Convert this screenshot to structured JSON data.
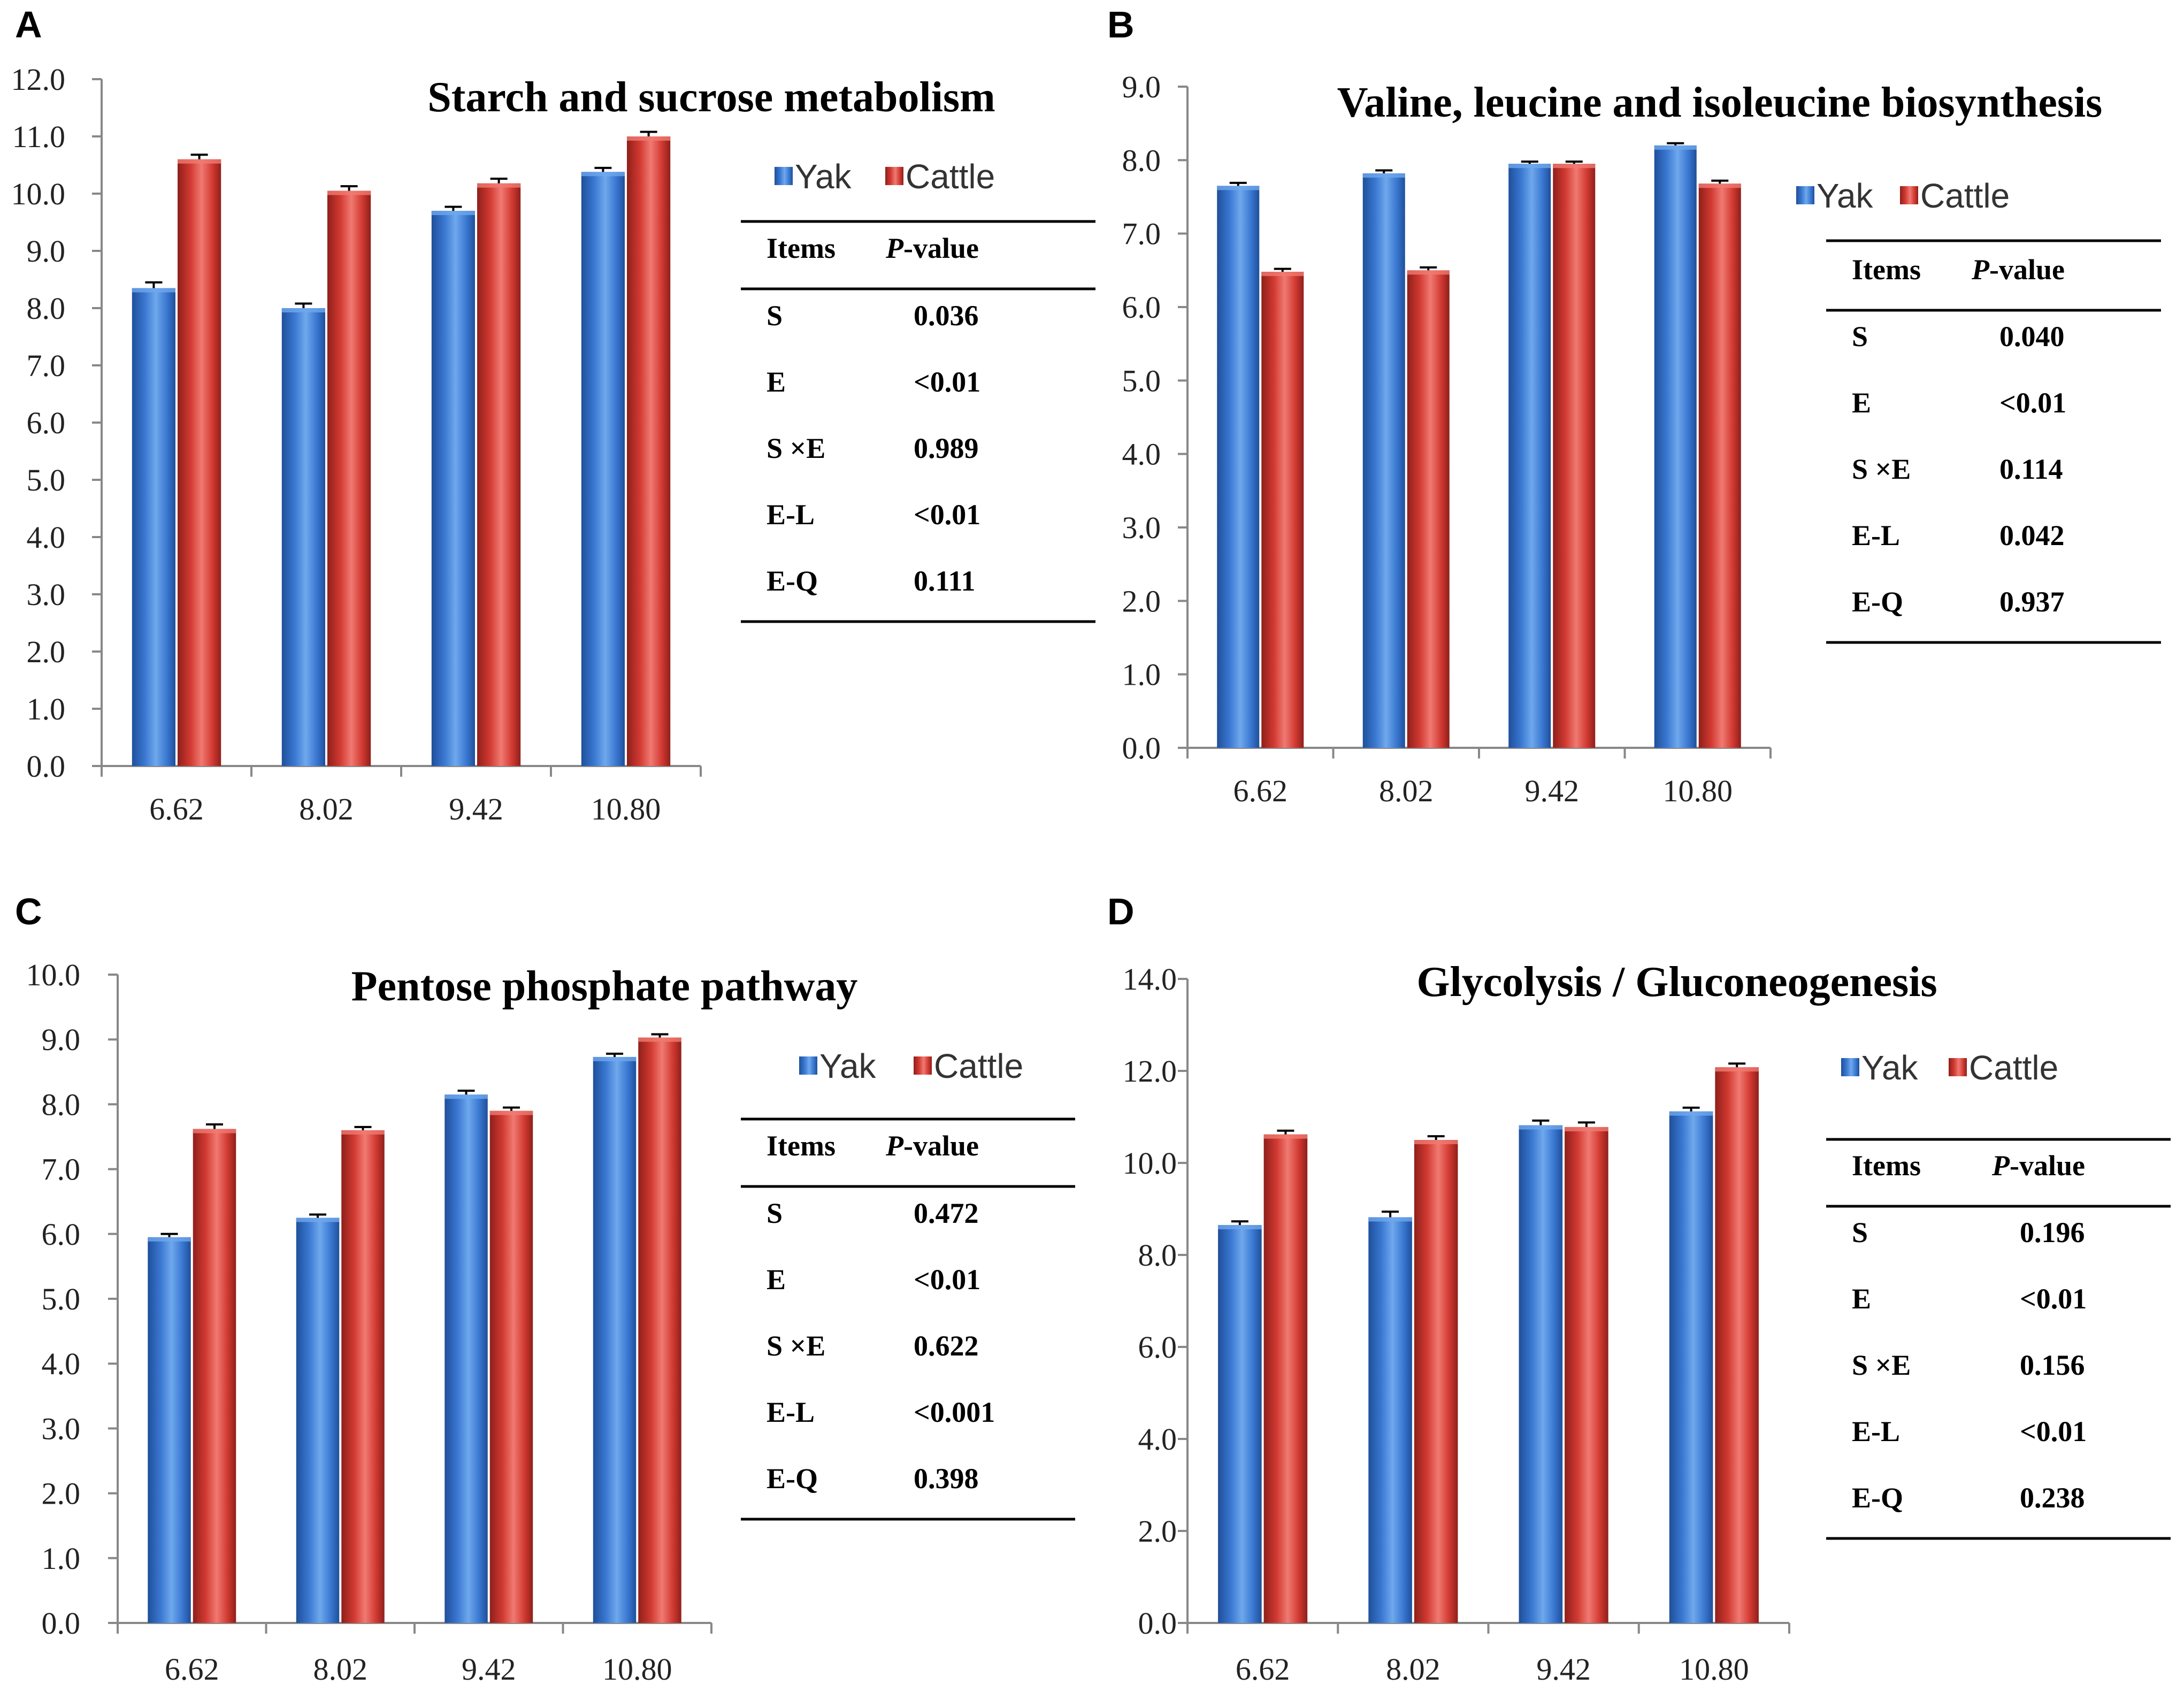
{
  "colors": {
    "yak_top": "#6fa8ec",
    "yak": "#3a78d2",
    "yak_dark": "#1f4f9a",
    "cattle_top": "#f07a72",
    "cattle": "#d23a32",
    "cattle_dark": "#8f1f1a",
    "axis": "#888888"
  },
  "chart_data": [
    {
      "id": "A",
      "panel_label": "A",
      "type": "bar",
      "title": "Starch and sucrose metabolism",
      "categories": [
        "6.62",
        "8.02",
        "9.42",
        "10.80"
      ],
      "ylim": [
        0,
        12
      ],
      "ystep": 1,
      "yticks": [
        "0.0",
        "1.0",
        "2.0",
        "3.0",
        "4.0",
        "5.0",
        "6.0",
        "7.0",
        "8.0",
        "9.0",
        "10.0",
        "11.0",
        "12.0"
      ],
      "series": [
        {
          "name": "Yak",
          "values": [
            8.35,
            8.0,
            9.7,
            10.38
          ],
          "errors": [
            0.1,
            0.08,
            0.07,
            0.07
          ]
        },
        {
          "name": "Cattle",
          "values": [
            10.6,
            10.05,
            10.18,
            11.0
          ],
          "errors": [
            0.08,
            0.08,
            0.08,
            0.08
          ]
        }
      ],
      "table": {
        "header": [
          "Items",
          "P",
          "-value"
        ],
        "rows": [
          [
            "S",
            "0.036"
          ],
          [
            "E",
            "<0.01"
          ],
          [
            "S ×E",
            "0.989"
          ],
          [
            "E-L",
            "<0.01"
          ],
          [
            "E-Q",
            "0.111"
          ]
        ]
      }
    },
    {
      "id": "B",
      "panel_label": "B",
      "type": "bar",
      "title": "Valine, leucine and isoleucine biosynthesis",
      "categories": [
        "6.62",
        "8.02",
        "9.42",
        "10.80"
      ],
      "ylim": [
        0,
        9
      ],
      "ystep": 1,
      "yticks": [
        "0.0",
        "1.0",
        "2.0",
        "3.0",
        "4.0",
        "5.0",
        "6.0",
        "7.0",
        "8.0",
        "9.0"
      ],
      "series": [
        {
          "name": "Yak",
          "values": [
            7.65,
            7.82,
            7.95,
            8.2
          ],
          "errors": [
            0.04,
            0.04,
            0.03,
            0.03
          ]
        },
        {
          "name": "Cattle",
          "values": [
            6.48,
            6.5,
            7.95,
            7.68
          ],
          "errors": [
            0.04,
            0.04,
            0.03,
            0.04
          ]
        }
      ],
      "table": {
        "header": [
          "Items",
          "P",
          "-value"
        ],
        "rows": [
          [
            "S",
            "0.040"
          ],
          [
            "E",
            "<0.01"
          ],
          [
            "S ×E",
            "0.114"
          ],
          [
            "E-L",
            "0.042"
          ],
          [
            "E-Q",
            "0.937"
          ]
        ]
      }
    },
    {
      "id": "C",
      "panel_label": "C",
      "type": "bar",
      "title": "Pentose phosphate pathway",
      "categories": [
        "6.62",
        "8.02",
        "9.42",
        "10.80"
      ],
      "ylim": [
        0,
        10
      ],
      "ystep": 1,
      "yticks": [
        "0.0",
        "1.0",
        "2.0",
        "3.0",
        "4.0",
        "5.0",
        "6.0",
        "7.0",
        "8.0",
        "9.0",
        "10.0"
      ],
      "series": [
        {
          "name": "Yak",
          "values": [
            5.95,
            6.25,
            8.15,
            8.73
          ],
          "errors": [
            0.05,
            0.05,
            0.06,
            0.05
          ]
        },
        {
          "name": "Cattle",
          "values": [
            7.62,
            7.6,
            7.9,
            9.03
          ],
          "errors": [
            0.07,
            0.05,
            0.05,
            0.05
          ]
        }
      ],
      "table": {
        "header": [
          "Items",
          "P",
          "-value"
        ],
        "rows": [
          [
            "S",
            "0.472"
          ],
          [
            "E",
            "<0.01"
          ],
          [
            "S ×E",
            "0.622"
          ],
          [
            "E-L",
            "<0.001"
          ],
          [
            "E-Q",
            "0.398"
          ]
        ]
      }
    },
    {
      "id": "D",
      "panel_label": "D",
      "type": "bar",
      "title": "Glycolysis  / Gluconeogenesis",
      "categories": [
        "6.62",
        "8.02",
        "9.42",
        "10.80"
      ],
      "ylim": [
        0,
        14
      ],
      "ystep": 2,
      "yticks": [
        "0.0",
        "2.0",
        "4.0",
        "6.0",
        "8.0",
        "10.0",
        "12.0",
        "14.0"
      ],
      "series": [
        {
          "name": "Yak",
          "values": [
            8.65,
            8.82,
            10.82,
            11.12
          ],
          "errors": [
            0.08,
            0.12,
            0.1,
            0.08
          ]
        },
        {
          "name": "Cattle",
          "values": [
            10.62,
            10.5,
            10.78,
            12.08
          ],
          "errors": [
            0.08,
            0.08,
            0.1,
            0.08
          ]
        }
      ],
      "table": {
        "header": [
          "Items",
          "P",
          "-value"
        ],
        "rows": [
          [
            "S",
            "0.196"
          ],
          [
            "E",
            "<0.01"
          ],
          [
            "S ×E",
            "0.156"
          ],
          [
            "E-L",
            "<0.01"
          ],
          [
            "E-Q",
            "0.238"
          ]
        ]
      }
    }
  ]
}
